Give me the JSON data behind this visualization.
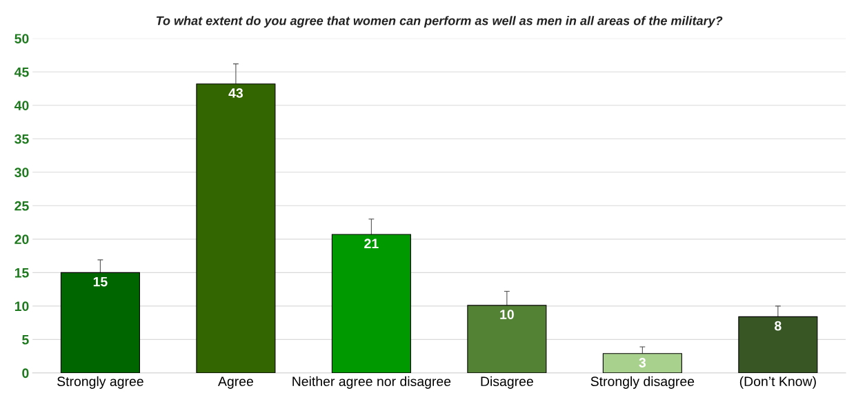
{
  "chart_data": {
    "type": "bar",
    "title": "To what extent do you agree that women can perform as well as men in all areas of the military?",
    "categories": [
      "Strongly agree",
      "Agree",
      "Neither agree nor disagree",
      "Disagree",
      "Strongly disagree",
      "(Don’t Know)"
    ],
    "values": [
      15.0,
      43.2,
      20.7,
      10.1,
      2.9,
      8.4
    ],
    "value_labels": [
      "15",
      "43",
      "21",
      "10",
      "3",
      "8"
    ],
    "errors": [
      [
        15.0,
        16.9
      ],
      [
        43.2,
        46.2
      ],
      [
        20.7,
        23.0
      ],
      [
        10.1,
        12.2
      ],
      [
        2.9,
        3.9
      ],
      [
        8.4,
        10.0
      ]
    ],
    "colors": [
      "#006600",
      "#336600",
      "#009900",
      "#548235",
      "#a9d18e",
      "#375623"
    ],
    "ylim": [
      0,
      50
    ],
    "yticks": [
      0,
      5,
      10,
      15,
      20,
      25,
      30,
      35,
      40,
      45,
      50
    ],
    "grid": "y"
  }
}
